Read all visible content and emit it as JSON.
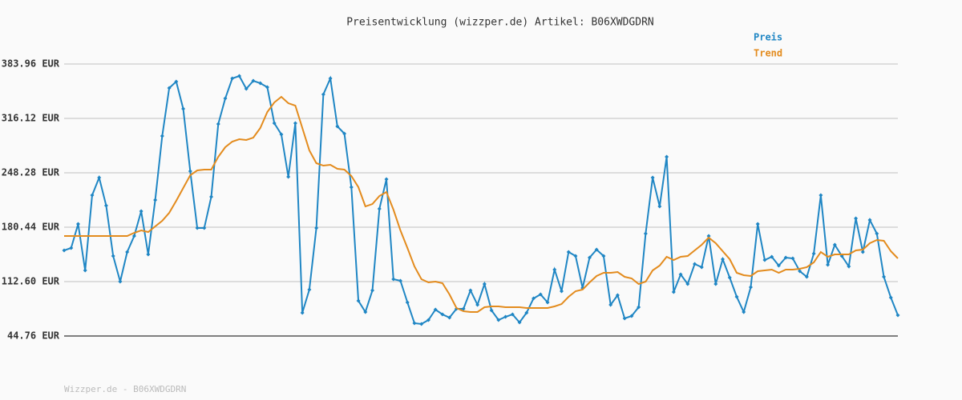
{
  "chart_data": {
    "type": "line",
    "title": "Preisentwicklung (wizzper.de) Artikel: B06XWDGDRN",
    "footer": "Wizzper.de - B06XWDGDRN",
    "categories": [
      null,
      null,
      null,
      null,
      null,
      null,
      null,
      null,
      null,
      null,
      null,
      null,
      null,
      null,
      null,
      null,
      null,
      null,
      null,
      null,
      null,
      null,
      null,
      null,
      null,
      null,
      null,
      null,
      null,
      null,
      null,
      null,
      null,
      null,
      null,
      null,
      null,
      null,
      null,
      null,
      null,
      null,
      null,
      null,
      null,
      null,
      null,
      null,
      null,
      null,
      null,
      null,
      null,
      null,
      null,
      null,
      null,
      null,
      null,
      null,
      null,
      null,
      null,
      null,
      null,
      null,
      null,
      null,
      null,
      null,
      null,
      null,
      null,
      null,
      null,
      null,
      null,
      null,
      null,
      null,
      null,
      null,
      null,
      null,
      null,
      null,
      null,
      null,
      null,
      null,
      null,
      null,
      null,
      null,
      null,
      null,
      null,
      null,
      null,
      null,
      null,
      null,
      null,
      null,
      null,
      null,
      null,
      null,
      null,
      null,
      null,
      null,
      null,
      null,
      null,
      null,
      null,
      null,
      null,
      null
    ],
    "series": [
      {
        "name": "Preis",
        "color": "#1f86c4",
        "markers": true,
        "values": [
          151.51,
          154.5,
          184.43,
          126.57,
          220.34,
          242.29,
          207.37,
          144.52,
          112.6,
          149.51,
          169.46,
          200.39,
          146.52,
          214.35,
          294.16,
          354.02,
          362.0,
          328.08,
          250.27,
          179.44,
          179.44,
          218.34,
          309.13,
          341.05,
          365.99,
          368.98,
          353.02,
          363.0,
          360.01,
          355.02,
          310.13,
          296.16,
          243.29,
          310.13,
          73.69,
          102.62,
          179.44,
          346.04,
          365.99,
          306.14,
          297.16,
          230.32,
          88.66,
          74.69,
          101.63,
          203.38,
          240.29,
          115.59,
          113.6,
          86.66,
          60.72,
          59.72,
          64.71,
          77.68,
          71.7,
          67.71,
          78.68,
          78.68,
          101.63,
          83.67,
          109.6,
          76.68,
          64.71,
          68.7,
          71.7,
          61.72,
          73.69,
          91.65,
          96.64,
          86.66,
          127.56,
          100.63,
          149.51,
          144.52,
          104.62,
          142.53,
          152.5,
          144.52,
          83.67,
          95.64,
          66.71,
          69.7,
          80.67,
          172.46,
          242.29,
          206.37,
          268.23,
          99.63,
          121.58,
          109.6,
          134.55,
          130.56,
          169.46,
          109.6,
          140.53,
          117.59,
          93.64,
          74.69,
          105.62,
          184.43,
          139.53,
          143.53,
          132.55,
          142.53,
          141.53,
          125.57,
          118.58,
          147.52,
          220.34,
          133.55,
          158.49,
          144.52,
          131.56,
          191.41,
          149.51,
          189.42,
          172.46,
          118.58,
          92.65,
          70.7
        ]
      },
      {
        "name": "Trend",
        "color": "#e38b1d",
        "markers": false,
        "values": [
          169.46,
          169.46,
          169.46,
          169.46,
          169.46,
          169.46,
          169.46,
          169.46,
          169.46,
          169.46,
          173.45,
          176.44,
          174.45,
          181.43,
          188.42,
          198.4,
          213.36,
          229.32,
          245.28,
          251.27,
          252.27,
          252.27,
          268.23,
          280.2,
          287.18,
          290.18,
          289.18,
          292.17,
          304.14,
          324.09,
          336.06,
          343.05,
          335.07,
          332.08,
          304.14,
          276.21,
          260.25,
          257.25,
          258.25,
          253.26,
          252.27,
          244.28,
          230.32,
          206.37,
          209.36,
          219.34,
          224.33,
          202.38,
          176.44,
          154.5,
          131.56,
          115.59,
          111.6,
          112.6,
          110.6,
          96.64,
          79.68,
          75.69,
          74.69,
          74.69,
          80.67,
          81.67,
          81.67,
          80.67,
          80.67,
          80.67,
          79.68,
          79.68,
          79.68,
          79.68,
          81.67,
          84.66,
          93.64,
          100.63,
          102.62,
          111.6,
          119.58,
          123.57,
          123.57,
          124.57,
          118.58,
          116.59,
          109.6,
          112.6,
          126.57,
          132.55,
          143.53,
          139.53,
          143.53,
          144.52,
          151.51,
          158.49,
          167.47,
          160.48,
          150.51,
          140.53,
          123.57,
          120.58,
          119.58,
          125.57,
          126.57,
          127.56,
          123.57,
          127.56,
          127.56,
          128.56,
          130.56,
          136.54,
          149.51,
          143.53,
          146.52,
          146.52,
          146.52,
          151.51,
          152.5,
          160.48,
          164.47,
          163.48,
          150.51,
          141.53
        ]
      }
    ],
    "ylim": [
      44.76,
      383.96
    ],
    "yticks": [
      {
        "value": 44.76,
        "label": "44.76 EUR"
      },
      {
        "value": 112.6,
        "label": "112.60 EUR"
      },
      {
        "value": 180.44,
        "label": "180.44 EUR"
      },
      {
        "value": 248.28,
        "label": "248.28 EUR"
      },
      {
        "value": 316.12,
        "label": "316.12 EUR"
      },
      {
        "value": 383.96,
        "label": "383.96 EUR"
      }
    ],
    "grid": true
  }
}
